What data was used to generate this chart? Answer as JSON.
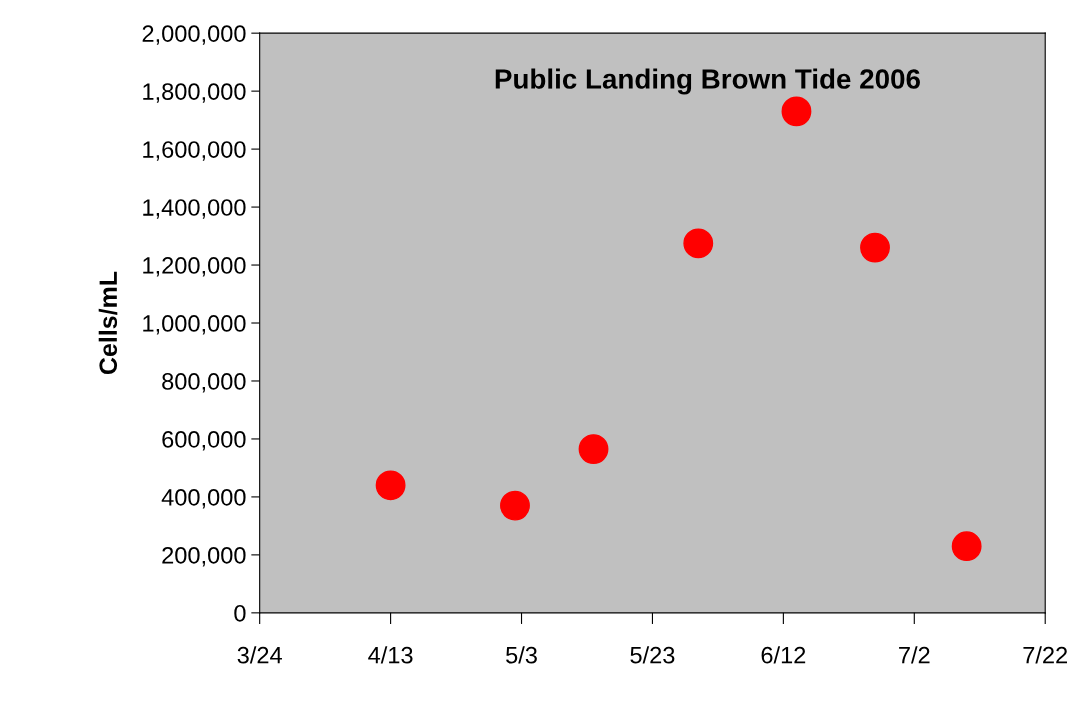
{
  "chart_data": {
    "type": "scatter",
    "title": "Public Landing Brown Tide 2006",
    "ylabel": "Cells/mL",
    "x": [
      "2006-04-13",
      "2006-05-02",
      "2006-05-14",
      "2006-05-30",
      "2006-06-14",
      "2006-06-26",
      "2006-07-10"
    ],
    "series": [
      {
        "color": "#ff0000",
        "values": [
          440000,
          370000,
          565000,
          1275000,
          1730000,
          1260000,
          230000
        ]
      }
    ],
    "xlim": [
      "2006-03-24",
      "2006-07-22"
    ],
    "xticks": [
      {
        "value": "2006-03-24",
        "label": "3/24"
      },
      {
        "value": "2006-04-13",
        "label": "4/13"
      },
      {
        "value": "2006-05-03",
        "label": "5/3"
      },
      {
        "value": "2006-05-23",
        "label": "5/23"
      },
      {
        "value": "2006-06-12",
        "label": "6/12"
      },
      {
        "value": "2006-07-02",
        "label": "7/2"
      },
      {
        "value": "2006-07-22",
        "label": "7/22"
      }
    ],
    "ylim": [
      0,
      2000000
    ],
    "yticks": [
      {
        "value": 0,
        "label": "0"
      },
      {
        "value": 200000,
        "label": "200,000"
      },
      {
        "value": 400000,
        "label": "400,000"
      },
      {
        "value": 600000,
        "label": "600,000"
      },
      {
        "value": 800000,
        "label": "800,000"
      },
      {
        "value": 1000000,
        "label": "1,000,000"
      },
      {
        "value": 1200000,
        "label": "1,200,000"
      },
      {
        "value": 1400000,
        "label": "1,400,000"
      },
      {
        "value": 1600000,
        "label": "1,600,000"
      },
      {
        "value": 1800000,
        "label": "1,800,000"
      },
      {
        "value": 2000000,
        "label": "2,000,000"
      }
    ],
    "grid": false,
    "marker": "circle"
  }
}
